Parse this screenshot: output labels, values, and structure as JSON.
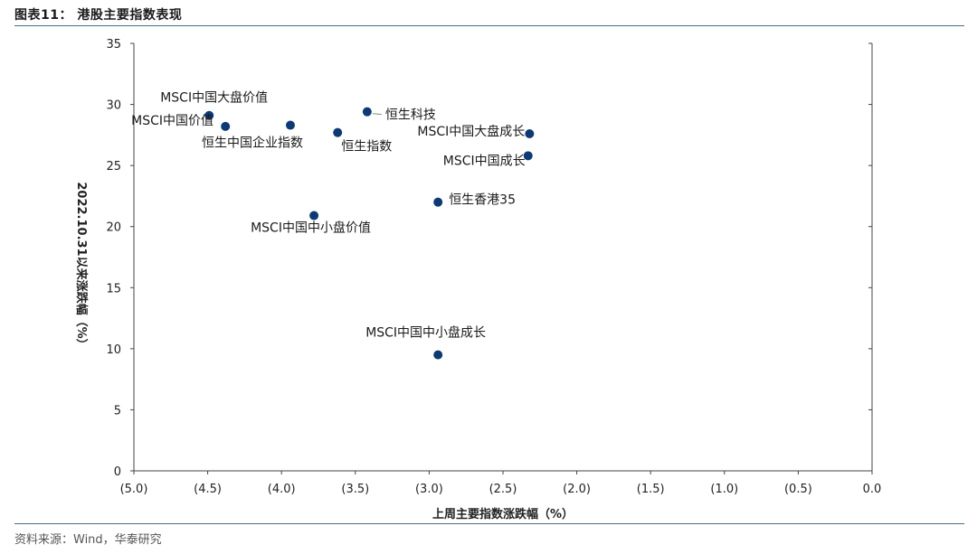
{
  "figure": {
    "title": "图表11：  港股主要指数表现",
    "source": "资料来源：Wind，华泰研究"
  },
  "chart_data": {
    "type": "scatter",
    "title": "",
    "xlabel": "上周主要指数涨跌幅（%）",
    "ylabel": "2022.10.31以来涨跌幅（%）",
    "xlim": [
      -5.0,
      0.0
    ],
    "ylim": [
      0,
      35
    ],
    "x_ticks": [
      "(5.0)",
      "(4.5)",
      "(4.0)",
      "(3.5)",
      "(3.0)",
      "(2.5)",
      "(2.0)",
      "(1.5)",
      "(1.0)",
      "(0.5)",
      "0.0"
    ],
    "y_ticks": [
      "0",
      "5",
      "10",
      "15",
      "20",
      "25",
      "30",
      "35"
    ],
    "grid": false,
    "legend": "none",
    "marker_color": "#0e3a73",
    "points": [
      {
        "name": "MSCI中国大盘价值",
        "x": -4.49,
        "y": 29.1
      },
      {
        "name": "MSCI中国价值",
        "x": -4.38,
        "y": 28.2
      },
      {
        "name": "恒生中国企业指数",
        "x": -3.94,
        "y": 28.3
      },
      {
        "name": "恒生科技",
        "x": -3.42,
        "y": 29.4
      },
      {
        "name": "恒生指数",
        "x": -3.62,
        "y": 27.7
      },
      {
        "name": "MSCI中国大盘成长",
        "x": -2.32,
        "y": 27.6
      },
      {
        "name": "MSCI中国成长",
        "x": -2.33,
        "y": 25.8
      },
      {
        "name": "恒生香港35",
        "x": -2.94,
        "y": 22.0
      },
      {
        "name": "MSCI中国中小盘价值",
        "x": -3.78,
        "y": 20.9
      },
      {
        "name": "MSCI中国中小盘成长",
        "x": -2.94,
        "y": 9.5
      }
    ]
  }
}
